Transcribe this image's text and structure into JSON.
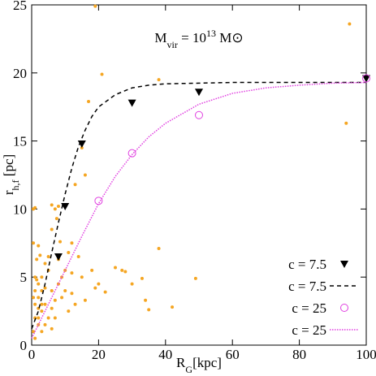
{
  "chart_data": {
    "type": "scatter",
    "title": [
      "M",
      "vir",
      " = 10",
      "13",
      " M",
      "⊙"
    ],
    "x_label": [
      "R",
      "G",
      "[kpc]"
    ],
    "y_label": [
      "r",
      "h,f",
      " [pc]"
    ],
    "xlim": [
      0,
      100
    ],
    "ylim": [
      0,
      25
    ],
    "xticks": [
      0,
      20,
      40,
      60,
      80,
      100
    ],
    "yticks": [
      0,
      5,
      10,
      15,
      20,
      25
    ],
    "legend": "lower right",
    "series": [
      {
        "style": "points",
        "marker": "dot",
        "color": "#f5a623",
        "x": [
          0.5,
          1,
          19,
          21,
          17,
          15,
          16,
          13,
          8,
          6,
          7,
          7.5,
          6,
          8.5,
          12,
          11,
          14,
          8,
          10,
          12,
          15,
          18,
          20,
          22,
          25,
          27,
          28,
          30,
          33,
          34,
          35,
          38,
          42,
          49,
          38,
          95,
          94,
          1,
          1,
          2,
          2,
          3,
          3,
          1,
          2,
          0.5,
          4,
          4,
          5,
          5,
          3,
          2,
          1,
          6,
          7,
          8,
          9,
          5,
          4,
          6,
          1.5,
          2.5,
          0.5,
          2,
          3,
          1,
          4,
          6,
          7,
          9,
          10,
          12,
          11,
          13,
          16,
          19,
          3,
          0.5,
          2,
          1.5
        ],
        "values": [
          10,
          10.1,
          24.9,
          19.9,
          17.9,
          14.5,
          12.5,
          11.8,
          10.2,
          10.3,
          10,
          9.3,
          8.5,
          7.6,
          7.5,
          6.8,
          6.5,
          6.3,
          5.5,
          5.3,
          5,
          5.5,
          4.5,
          3.9,
          5.7,
          5.5,
          5.4,
          4.5,
          4.9,
          3.3,
          2.6,
          7.1,
          2.8,
          4.9,
          19.5,
          23.6,
          16.3,
          5,
          4,
          3.5,
          4.5,
          5,
          2.5,
          2,
          1.5,
          1,
          3,
          4.2,
          2,
          5.5,
          3,
          2.7,
          3,
          4,
          3.3,
          4.5,
          5,
          6.5,
          6,
          2.7,
          6.3,
          6.6,
          7.5,
          7.3,
          1,
          0.5,
          1.5,
          1.2,
          2,
          3.5,
          4,
          3.8,
          2.5,
          3,
          3.3,
          4.2,
          4,
          3.5,
          2,
          4.8
        ]
      },
      {
        "name": "c = 7.5",
        "style": "points",
        "marker": "triangle",
        "color": "#000000",
        "x": [
          8,
          10,
          15,
          30,
          50,
          100
        ],
        "values": [
          6.5,
          10.2,
          14.8,
          17.8,
          18.6,
          19.6
        ]
      },
      {
        "name": "c = 7.5",
        "style": "line",
        "dash": "dashed",
        "color": "#000000",
        "x": [
          0,
          2,
          4,
          6,
          8,
          10,
          12,
          14,
          16,
          18,
          20,
          25,
          30,
          35,
          40,
          50,
          60,
          80,
          100
        ],
        "values": [
          1.2,
          2.5,
          4.5,
          6.8,
          9,
          11.1,
          13,
          14.6,
          15.8,
          16.8,
          17.5,
          18.4,
          18.9,
          19.1,
          19.2,
          19.25,
          19.3,
          19.3,
          19.3
        ]
      },
      {
        "name": "c = 25",
        "style": "points",
        "marker": "circle",
        "color": "#e040e0",
        "x": [
          20,
          30,
          50,
          100
        ],
        "values": [
          10.6,
          14.1,
          16.9,
          19.6
        ]
      },
      {
        "name": "c = 25",
        "style": "line",
        "dash": "dotted",
        "color": "#e040e0",
        "x": [
          0,
          5,
          10,
          15,
          20,
          25,
          30,
          35,
          40,
          50,
          60,
          70,
          80,
          90,
          100
        ],
        "values": [
          0.5,
          3,
          5.5,
          8,
          10.4,
          12.4,
          14,
          15.3,
          16.3,
          17.7,
          18.5,
          18.9,
          19.1,
          19.25,
          19.3
        ]
      }
    ]
  }
}
